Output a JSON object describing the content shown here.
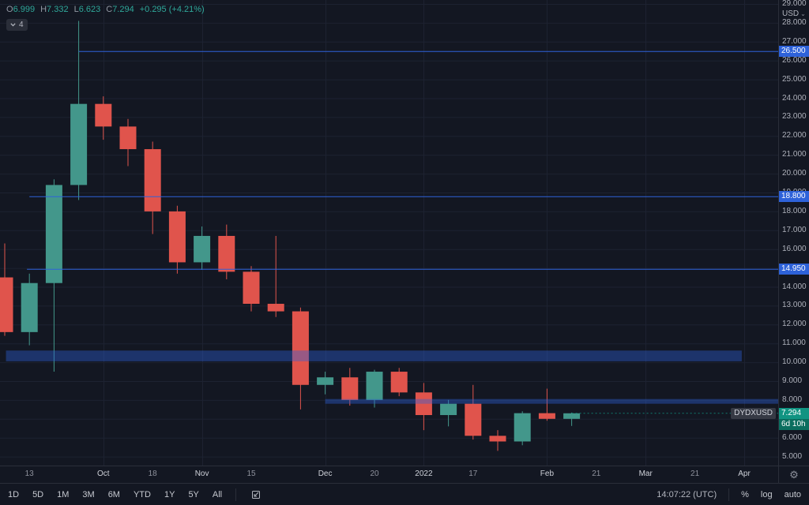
{
  "colors": {
    "background": "#131722",
    "grid": "#1d2231",
    "up": "#43978b",
    "down": "#e0544c",
    "accent_blue": "#2e62d9",
    "band_fill": "rgba(46,98,217,0.40)",
    "price_label_bg": "#119482",
    "countdown_bg": "#0b6e5f",
    "symbol_label_bg": "#363a45"
  },
  "legend": {
    "o_label": "O",
    "o_value": "6.999",
    "h_label": "H",
    "h_value": "7.332",
    "l_label": "L",
    "l_value": "6.623",
    "c_label": "C",
    "c_value": "7.294",
    "change": "+0.295 (+4.21%)",
    "badge_count": "4"
  },
  "price_axis": {
    "unit_selector": "USD",
    "current_price": "7.294",
    "countdown": "6d 10h"
  },
  "toolbar": {
    "ranges": [
      "1D",
      "5D",
      "1M",
      "3M",
      "6M",
      "YTD",
      "1Y",
      "5Y",
      "All"
    ],
    "clock": "14:07:22 (UTC)",
    "percent": "%",
    "log": "log",
    "auto": "auto"
  },
  "chart_data": {
    "type": "candlestick",
    "symbol": "DYDXUSD",
    "quote_currency": "USD",
    "interval": "weekly",
    "y_axis": {
      "min": 5,
      "max": 29,
      "step": 1,
      "tick_format": "#.000"
    },
    "x_ticks": [
      {
        "week": 1,
        "label": "13"
      },
      {
        "week": 4,
        "label": "Oct",
        "month": true
      },
      {
        "week": 6,
        "label": "18"
      },
      {
        "week": 8,
        "label": "Nov",
        "month": true
      },
      {
        "week": 10,
        "label": "15"
      },
      {
        "week": 13,
        "label": "Dec",
        "month": true
      },
      {
        "week": 15,
        "label": "20"
      },
      {
        "week": 17,
        "label": "2022",
        "month": true
      },
      {
        "week": 19,
        "label": "17"
      },
      {
        "week": 22,
        "label": "Feb",
        "month": true
      },
      {
        "week": 24,
        "label": "21"
      },
      {
        "week": 26,
        "label": "Mar",
        "month": true
      },
      {
        "week": 28,
        "label": "21"
      },
      {
        "week": 30,
        "label": "Apr",
        "month": true
      }
    ],
    "ohlc": [
      {
        "t": "Sep 6",
        "o": 14.5,
        "h": 16.3,
        "l": 11.4,
        "c": 11.6
      },
      {
        "t": "Sep 13",
        "o": 11.6,
        "h": 14.7,
        "l": 10.9,
        "c": 14.2
      },
      {
        "t": "Sep 20",
        "o": 14.2,
        "h": 19.7,
        "l": 9.5,
        "c": 19.4
      },
      {
        "t": "Sep 27",
        "o": 19.4,
        "h": 28.1,
        "l": 18.6,
        "c": 23.7
      },
      {
        "t": "Oct 4",
        "o": 23.7,
        "h": 24.1,
        "l": 21.8,
        "c": 22.5
      },
      {
        "t": "Oct 11",
        "o": 22.5,
        "h": 22.9,
        "l": 20.4,
        "c": 21.3
      },
      {
        "t": "Oct 18",
        "o": 21.3,
        "h": 21.7,
        "l": 16.8,
        "c": 18.0
      },
      {
        "t": "Oct 25",
        "o": 18.0,
        "h": 18.3,
        "l": 14.7,
        "c": 15.3
      },
      {
        "t": "Nov 1",
        "o": 15.3,
        "h": 17.2,
        "l": 14.9,
        "c": 16.7
      },
      {
        "t": "Nov 8",
        "o": 16.7,
        "h": 17.3,
        "l": 14.4,
        "c": 14.8
      },
      {
        "t": "Nov 15",
        "o": 14.8,
        "h": 15.1,
        "l": 12.7,
        "c": 13.1
      },
      {
        "t": "Nov 22",
        "o": 13.1,
        "h": 16.7,
        "l": 12.4,
        "c": 12.7
      },
      {
        "t": "Nov 29",
        "o": 12.7,
        "h": 12.9,
        "l": 7.5,
        "c": 8.8
      },
      {
        "t": "Dec 6",
        "o": 8.8,
        "h": 9.5,
        "l": 8.3,
        "c": 9.2
      },
      {
        "t": "Dec 13",
        "o": 9.2,
        "h": 9.7,
        "l": 7.7,
        "c": 8.0
      },
      {
        "t": "Dec 20",
        "o": 8.0,
        "h": 9.6,
        "l": 7.6,
        "c": 9.5
      },
      {
        "t": "Dec 27",
        "o": 9.5,
        "h": 9.7,
        "l": 8.2,
        "c": 8.4
      },
      {
        "t": "Jan 3",
        "o": 8.4,
        "h": 8.9,
        "l": 6.4,
        "c": 7.2
      },
      {
        "t": "Jan 10",
        "o": 7.2,
        "h": 8.0,
        "l": 6.6,
        "c": 7.8
      },
      {
        "t": "Jan 17",
        "o": 7.8,
        "h": 8.8,
        "l": 5.9,
        "c": 6.1
      },
      {
        "t": "Jan 24",
        "o": 6.1,
        "h": 6.4,
        "l": 5.3,
        "c": 5.8
      },
      {
        "t": "Jan 31",
        "o": 5.8,
        "h": 7.4,
        "l": 5.6,
        "c": 7.3
      },
      {
        "t": "Feb 7",
        "o": 7.3,
        "h": 8.6,
        "l": 6.9,
        "c": 7.0
      },
      {
        "t": "Feb 14",
        "o": 6.999,
        "h": 7.332,
        "l": 6.623,
        "c": 7.294
      }
    ],
    "levels": [
      {
        "price": 26.5,
        "label": "26.500",
        "start_week": 3
      },
      {
        "price": 18.8,
        "label": "18.800",
        "start_week": 1
      },
      {
        "price": 14.95,
        "label": "14.950",
        "start_week": 0.9
      }
    ],
    "bands": [
      {
        "top": 10.62,
        "bottom": 10.05,
        "start_week": 0.05,
        "end_week": 29.9
      },
      {
        "top": 8.05,
        "bottom": 7.8,
        "start_week": 13,
        "end_week": null
      }
    ],
    "last_price": 7.294
  }
}
